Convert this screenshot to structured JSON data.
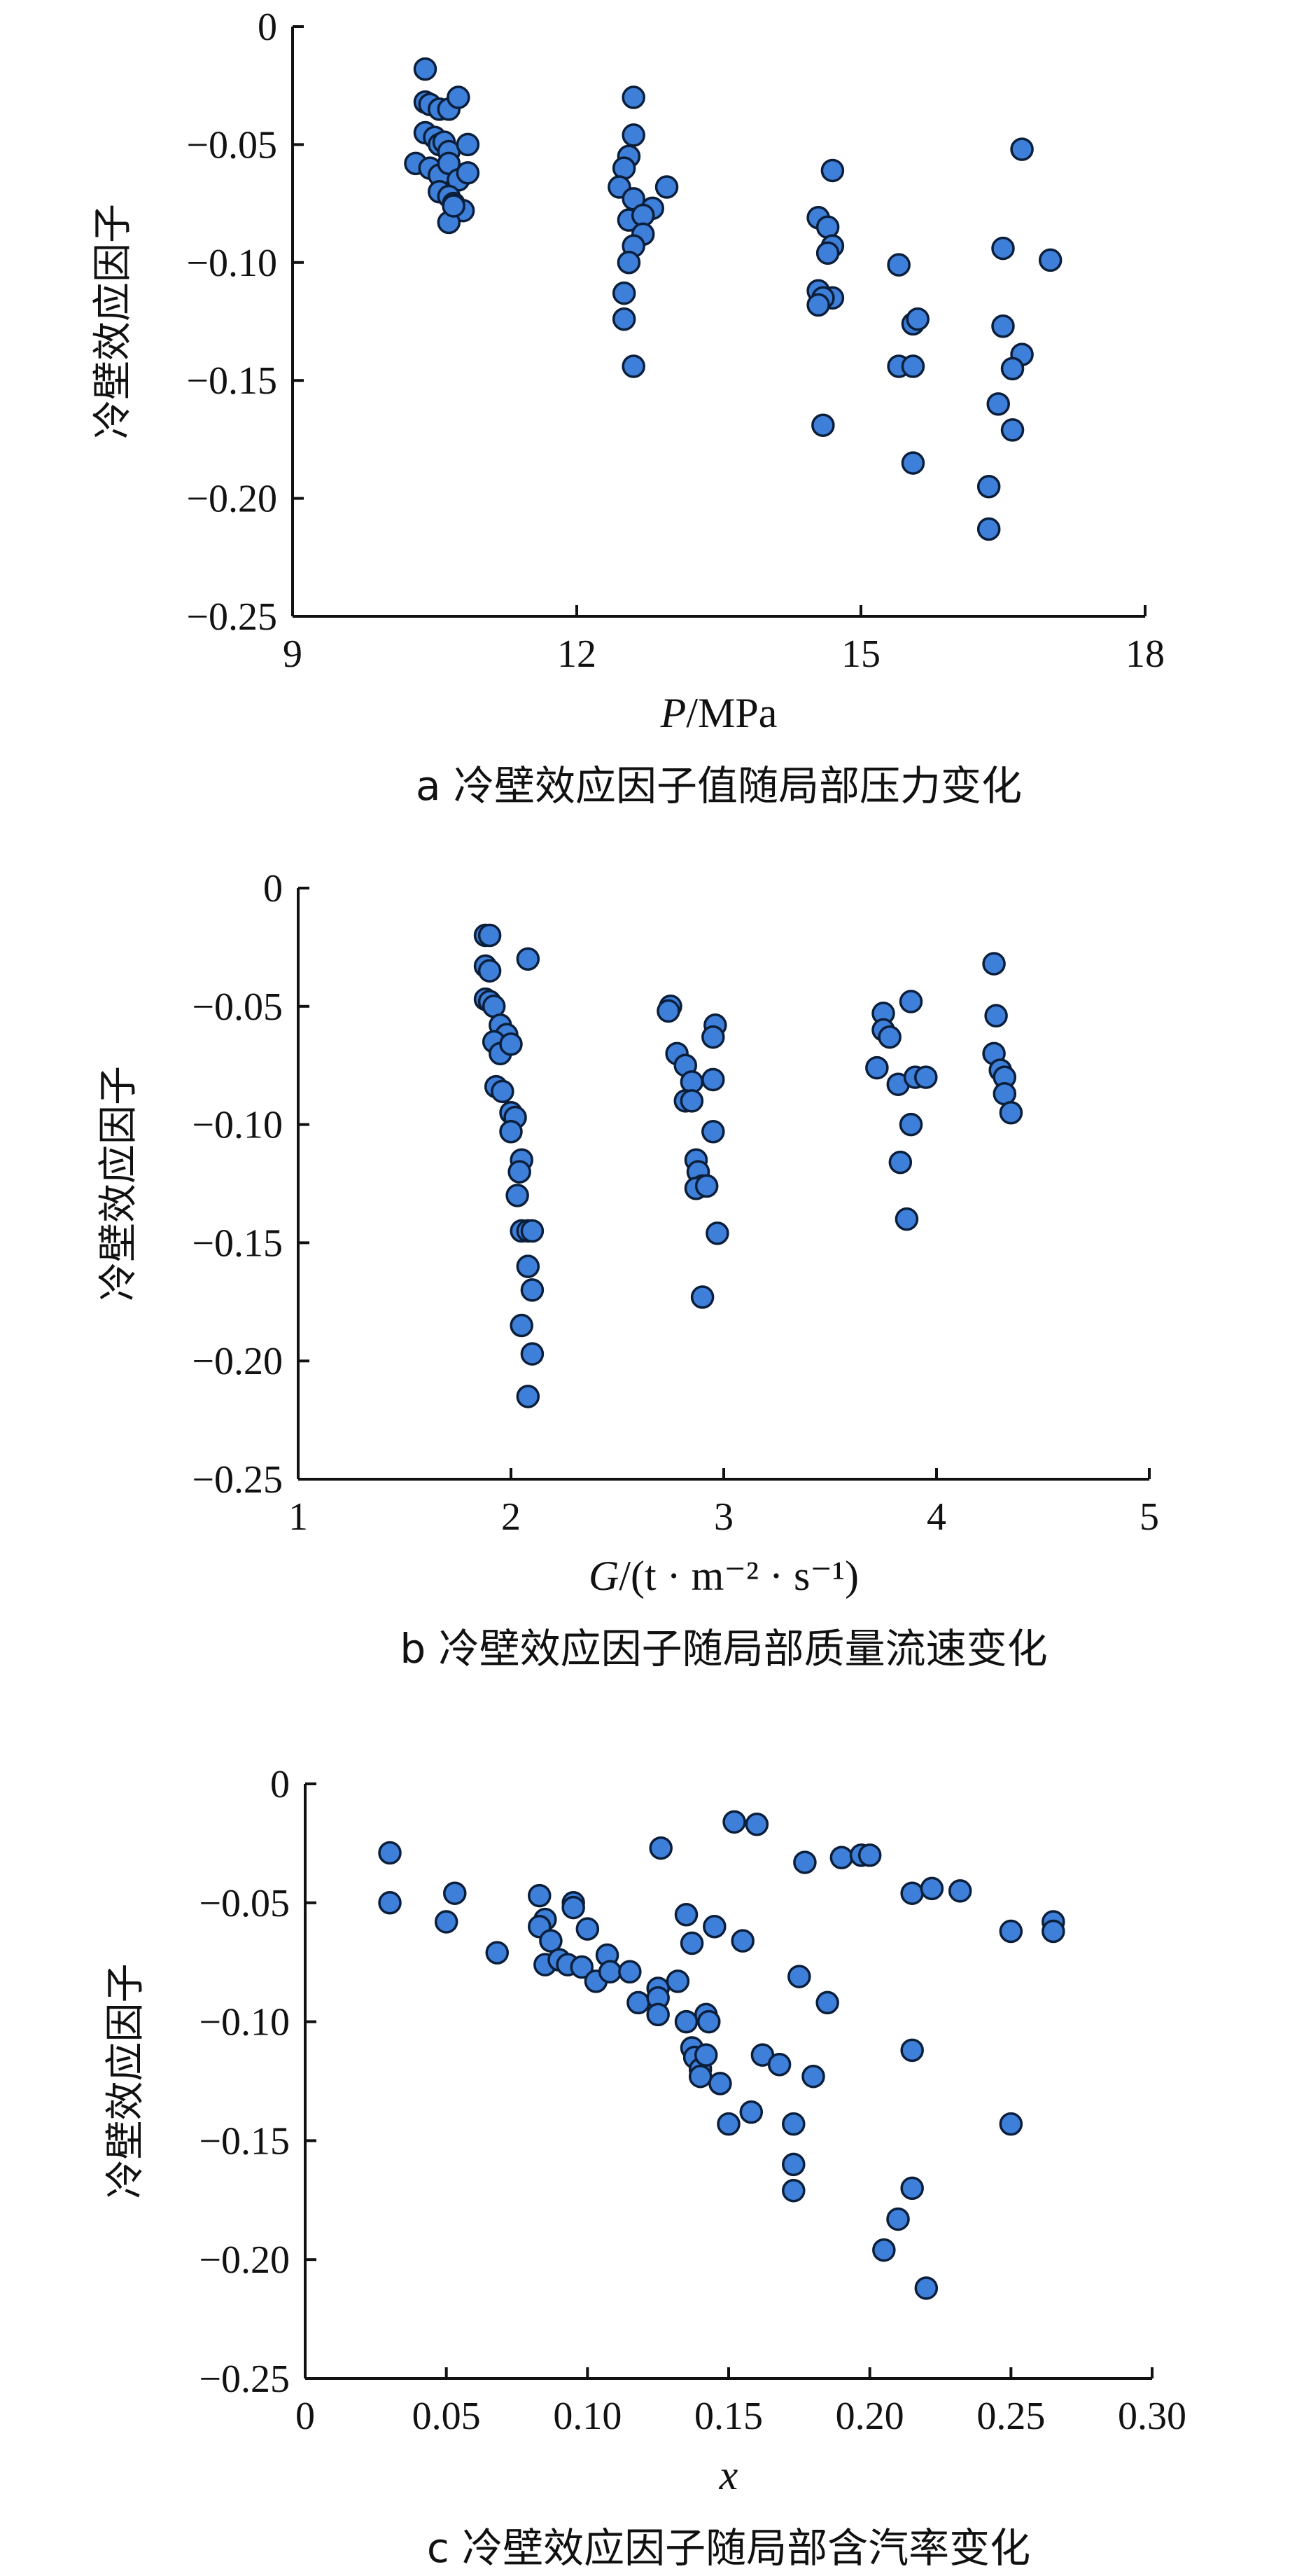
{
  "chart_data": [
    {
      "type": "scatter",
      "panel": "a",
      "caption": "a 冷壁效应因子值随局部压力变化",
      "xlabel_var": "P",
      "xlabel_rest": "/MPa",
      "ylabel": "冷壁效应因子",
      "xlim": [
        9,
        18
      ],
      "ylim": [
        -0.25,
        0
      ],
      "xticks": [
        "9",
        "12",
        "15",
        "18"
      ],
      "xtick_values": [
        9,
        12,
        15,
        18
      ],
      "yticks": [
        "0",
        "−0.05",
        "−0.10",
        "−0.15",
        "−0.20",
        "−0.25"
      ],
      "ytick_values": [
        0,
        -0.05,
        -0.1,
        -0.15,
        -0.2,
        -0.25
      ],
      "marker_color": "#3d7fd9",
      "points": [
        [
          10.4,
          -0.018
        ],
        [
          10.4,
          -0.032
        ],
        [
          10.45,
          -0.033
        ],
        [
          10.55,
          -0.035
        ],
        [
          10.65,
          -0.035
        ],
        [
          10.75,
          -0.03
        ],
        [
          10.4,
          -0.045
        ],
        [
          10.5,
          -0.047
        ],
        [
          10.55,
          -0.05
        ],
        [
          10.6,
          -0.049
        ],
        [
          10.65,
          -0.053
        ],
        [
          10.85,
          -0.05
        ],
        [
          10.3,
          -0.058
        ],
        [
          10.45,
          -0.06
        ],
        [
          10.55,
          -0.063
        ],
        [
          10.65,
          -0.058
        ],
        [
          10.75,
          -0.065
        ],
        [
          10.85,
          -0.062
        ],
        [
          10.55,
          -0.07
        ],
        [
          10.65,
          -0.072
        ],
        [
          10.7,
          -0.075
        ],
        [
          10.8,
          -0.078
        ],
        [
          10.65,
          -0.083
        ],
        [
          10.7,
          -0.076
        ],
        [
          12.6,
          -0.03
        ],
        [
          12.6,
          -0.046
        ],
        [
          12.55,
          -0.055
        ],
        [
          12.5,
          -0.06
        ],
        [
          12.45,
          -0.068
        ],
        [
          12.6,
          -0.073
        ],
        [
          12.8,
          -0.077
        ],
        [
          12.95,
          -0.068
        ],
        [
          12.55,
          -0.082
        ],
        [
          12.7,
          -0.08
        ],
        [
          12.7,
          -0.088
        ],
        [
          12.6,
          -0.093
        ],
        [
          12.55,
          -0.1
        ],
        [
          12.5,
          -0.113
        ],
        [
          12.5,
          -0.124
        ],
        [
          12.6,
          -0.144
        ],
        [
          14.7,
          -0.061
        ],
        [
          14.55,
          -0.081
        ],
        [
          14.65,
          -0.085
        ],
        [
          14.7,
          -0.093
        ],
        [
          14.65,
          -0.096
        ],
        [
          14.55,
          -0.112
        ],
        [
          14.7,
          -0.115
        ],
        [
          14.6,
          -0.115
        ],
        [
          14.55,
          -0.118
        ],
        [
          14.6,
          -0.169
        ],
        [
          15.4,
          -0.101
        ],
        [
          15.4,
          -0.144
        ],
        [
          15.55,
          -0.126
        ],
        [
          15.6,
          -0.124
        ],
        [
          15.55,
          -0.144
        ],
        [
          15.55,
          -0.185
        ],
        [
          16.7,
          -0.052
        ],
        [
          16.5,
          -0.094
        ],
        [
          17.0,
          -0.099
        ],
        [
          16.5,
          -0.127
        ],
        [
          16.7,
          -0.139
        ],
        [
          16.6,
          -0.145
        ],
        [
          16.45,
          -0.16
        ],
        [
          16.6,
          -0.171
        ],
        [
          16.35,
          -0.195
        ],
        [
          16.35,
          -0.213
        ]
      ]
    },
    {
      "type": "scatter",
      "panel": "b",
      "caption": "b 冷壁效应因子随局部质量流速变化",
      "xlabel_var": "G",
      "xlabel_rest": "/(t · m⁻² · s⁻¹)",
      "ylabel": "冷壁效应因子",
      "xlim": [
        1,
        5
      ],
      "ylim": [
        -0.25,
        0
      ],
      "xticks": [
        "1",
        "2",
        "3",
        "4",
        "5"
      ],
      "xtick_values": [
        1,
        2,
        3,
        4,
        5
      ],
      "yticks": [
        "0",
        "−0.05",
        "−0.10",
        "−0.15",
        "−0.20",
        "−0.25"
      ],
      "ytick_values": [
        0,
        -0.05,
        -0.1,
        -0.15,
        -0.2,
        -0.25
      ],
      "marker_color": "#3d7fd9",
      "points": [
        [
          1.88,
          -0.02
        ],
        [
          1.9,
          -0.02
        ],
        [
          1.88,
          -0.033
        ],
        [
          1.9,
          -0.035
        ],
        [
          1.88,
          -0.047
        ],
        [
          1.9,
          -0.048
        ],
        [
          1.92,
          -0.05
        ],
        [
          1.95,
          -0.058
        ],
        [
          1.98,
          -0.062
        ],
        [
          1.92,
          -0.065
        ],
        [
          1.95,
          -0.07
        ],
        [
          2.0,
          -0.066
        ],
        [
          1.93,
          -0.084
        ],
        [
          1.96,
          -0.086
        ],
        [
          2.0,
          -0.095
        ],
        [
          2.02,
          -0.097
        ],
        [
          2.0,
          -0.103
        ],
        [
          2.08,
          -0.03
        ],
        [
          2.05,
          -0.115
        ],
        [
          2.04,
          -0.12
        ],
        [
          2.03,
          -0.13
        ],
        [
          2.05,
          -0.145
        ],
        [
          2.08,
          -0.145
        ],
        [
          2.1,
          -0.145
        ],
        [
          2.08,
          -0.16
        ],
        [
          2.1,
          -0.17
        ],
        [
          2.05,
          -0.185
        ],
        [
          2.1,
          -0.197
        ],
        [
          2.08,
          -0.215
        ],
        [
          2.75,
          -0.05
        ],
        [
          2.74,
          -0.052
        ],
        [
          2.78,
          -0.07
        ],
        [
          2.82,
          -0.075
        ],
        [
          2.85,
          -0.082
        ],
        [
          2.82,
          -0.09
        ],
        [
          2.85,
          -0.09
        ],
        [
          2.96,
          -0.058
        ],
        [
          2.95,
          -0.063
        ],
        [
          2.95,
          -0.081
        ],
        [
          2.95,
          -0.103
        ],
        [
          2.87,
          -0.115
        ],
        [
          2.88,
          -0.12
        ],
        [
          2.9,
          -0.126
        ],
        [
          2.87,
          -0.127
        ],
        [
          2.92,
          -0.126
        ],
        [
          2.97,
          -0.146
        ],
        [
          2.9,
          -0.173
        ],
        [
          3.75,
          -0.053
        ],
        [
          3.75,
          -0.06
        ],
        [
          3.78,
          -0.063
        ],
        [
          3.72,
          -0.076
        ],
        [
          3.82,
          -0.083
        ],
        [
          3.9,
          -0.08
        ],
        [
          3.95,
          -0.08
        ],
        [
          3.88,
          -0.048
        ],
        [
          3.88,
          -0.1
        ],
        [
          3.83,
          -0.116
        ],
        [
          3.86,
          -0.14
        ],
        [
          4.27,
          -0.032
        ],
        [
          4.28,
          -0.054
        ],
        [
          4.27,
          -0.07
        ],
        [
          4.3,
          -0.077
        ],
        [
          4.32,
          -0.08
        ],
        [
          4.32,
          -0.087
        ],
        [
          4.35,
          -0.095
        ]
      ]
    },
    {
      "type": "scatter",
      "panel": "c",
      "caption": "c 冷壁效应因子随局部含汽率变化",
      "xlabel_var": "x",
      "xlabel_rest": "",
      "ylabel": "冷壁效应因子",
      "xlim": [
        0,
        0.3
      ],
      "ylim": [
        -0.25,
        0
      ],
      "xticks": [
        "0",
        "0.05",
        "0.10",
        "0.15",
        "0.20",
        "0.25",
        "0.30"
      ],
      "xtick_values": [
        0,
        0.05,
        0.1,
        0.15,
        0.2,
        0.25,
        0.3
      ],
      "yticks": [
        "0",
        "−0.05",
        "−0.10",
        "−0.15",
        "−0.20",
        "−0.25"
      ],
      "ytick_values": [
        0,
        -0.05,
        -0.1,
        -0.15,
        -0.2,
        -0.25
      ],
      "marker_color": "#3d7fd9",
      "points": [
        [
          0.03,
          -0.029
        ],
        [
          0.03,
          -0.05
        ],
        [
          0.05,
          -0.058
        ],
        [
          0.053,
          -0.046
        ],
        [
          0.068,
          -0.071
        ],
        [
          0.083,
          -0.047
        ],
        [
          0.085,
          -0.057
        ],
        [
          0.083,
          -0.06
        ],
        [
          0.087,
          -0.066
        ],
        [
          0.085,
          -0.076
        ],
        [
          0.09,
          -0.074
        ],
        [
          0.093,
          -0.076
        ],
        [
          0.095,
          -0.05
        ],
        [
          0.095,
          -0.052
        ],
        [
          0.1,
          -0.061
        ],
        [
          0.098,
          -0.077
        ],
        [
          0.103,
          -0.083
        ],
        [
          0.107,
          -0.072
        ],
        [
          0.108,
          -0.079
        ],
        [
          0.115,
          -0.079
        ],
        [
          0.118,
          -0.092
        ],
        [
          0.125,
          -0.086
        ],
        [
          0.125,
          -0.09
        ],
        [
          0.125,
          -0.097
        ],
        [
          0.126,
          -0.027
        ],
        [
          0.132,
          -0.083
        ],
        [
          0.135,
          -0.055
        ],
        [
          0.137,
          -0.067
        ],
        [
          0.135,
          -0.1
        ],
        [
          0.137,
          -0.111
        ],
        [
          0.138,
          -0.115
        ],
        [
          0.14,
          -0.12
        ],
        [
          0.14,
          -0.123
        ],
        [
          0.142,
          -0.097
        ],
        [
          0.143,
          -0.1
        ],
        [
          0.142,
          -0.114
        ],
        [
          0.145,
          -0.06
        ],
        [
          0.147,
          -0.126
        ],
        [
          0.15,
          -0.143
        ],
        [
          0.152,
          -0.016
        ],
        [
          0.155,
          -0.066
        ],
        [
          0.158,
          -0.138
        ],
        [
          0.16,
          -0.017
        ],
        [
          0.162,
          -0.114
        ],
        [
          0.168,
          -0.118
        ],
        [
          0.173,
          -0.143
        ],
        [
          0.173,
          -0.16
        ],
        [
          0.173,
          -0.171
        ],
        [
          0.175,
          -0.081
        ],
        [
          0.177,
          -0.033
        ],
        [
          0.18,
          -0.123
        ],
        [
          0.185,
          -0.092
        ],
        [
          0.19,
          -0.031
        ],
        [
          0.197,
          -0.03
        ],
        [
          0.2,
          -0.03
        ],
        [
          0.205,
          -0.196
        ],
        [
          0.21,
          -0.183
        ],
        [
          0.215,
          -0.046
        ],
        [
          0.215,
          -0.112
        ],
        [
          0.215,
          -0.17
        ],
        [
          0.22,
          -0.212
        ],
        [
          0.222,
          -0.044
        ],
        [
          0.232,
          -0.045
        ],
        [
          0.25,
          -0.062
        ],
        [
          0.25,
          -0.143
        ],
        [
          0.265,
          -0.058
        ],
        [
          0.265,
          -0.062
        ]
      ]
    }
  ]
}
